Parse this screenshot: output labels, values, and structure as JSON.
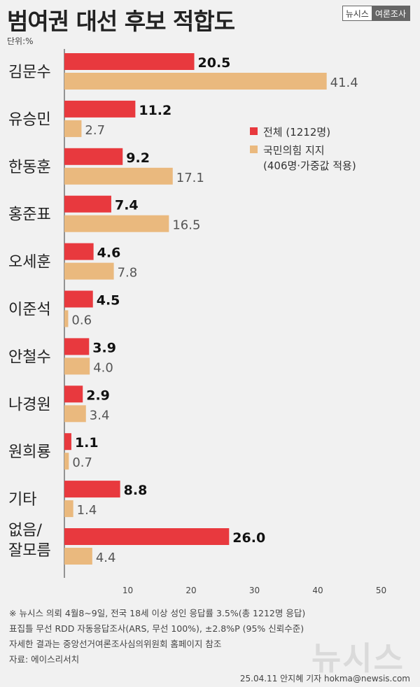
{
  "title": "범여권 대선 후보 적합도",
  "brand": {
    "left": "뉴시스",
    "right": "여론조사"
  },
  "chart_data": {
    "type": "bar",
    "orientation": "horizontal",
    "unit_label": "단위:%",
    "categories": [
      "김문수",
      "유승민",
      "한동훈",
      "홍준표",
      "오세훈",
      "이준석",
      "안철수",
      "나경원",
      "원희룡",
      "기타",
      "없음/\n잘모름"
    ],
    "series": [
      {
        "name": "전체 (1212명)",
        "color": "#e8393e",
        "values": [
          20.5,
          11.2,
          9.2,
          7.4,
          4.6,
          4.5,
          3.9,
          2.9,
          1.1,
          8.8,
          26.0
        ]
      },
      {
        "name": "국민의힘 지지\n(406명·가중값 적용)",
        "color": "#eab97e",
        "values": [
          41.4,
          2.7,
          17.1,
          16.5,
          7.8,
          0.6,
          4.0,
          3.4,
          0.7,
          1.4,
          4.4
        ]
      }
    ],
    "value_labels": [
      [
        "20.5",
        "11.2",
        "9.2",
        "7.4",
        "4.6",
        "4.5",
        "3.9",
        "2.9",
        "1.1",
        "8.8",
        "26.0"
      ],
      [
        "41.4",
        "2.7",
        "17.1",
        "16.5",
        "7.8",
        "0.6",
        "4.0",
        "3.4",
        "0.7",
        "1.4",
        "4.4"
      ]
    ],
    "xlim": [
      0,
      50
    ],
    "xticks": [
      "10",
      "20",
      "30",
      "40",
      "50"
    ],
    "legend_position": "right-middle"
  },
  "footnotes": [
    "※ 뉴시스 의뢰 4월8~9일, 전국 18세 이상 성인 응답률 3.5%(총 1212명 응답)",
    "표집틀 무선 RDD 자동응답조사(ARS, 무선 100%), ±2.8%P (95% 신뢰수준)",
    "자세한 결과는 중앙선거여론조사심의위원회 홈페이지 참조",
    "자료: 에이스리서치"
  ],
  "watermark": "뉴시스",
  "byline": "25.04.11 안지혜 기자 hokma@newsis.com"
}
